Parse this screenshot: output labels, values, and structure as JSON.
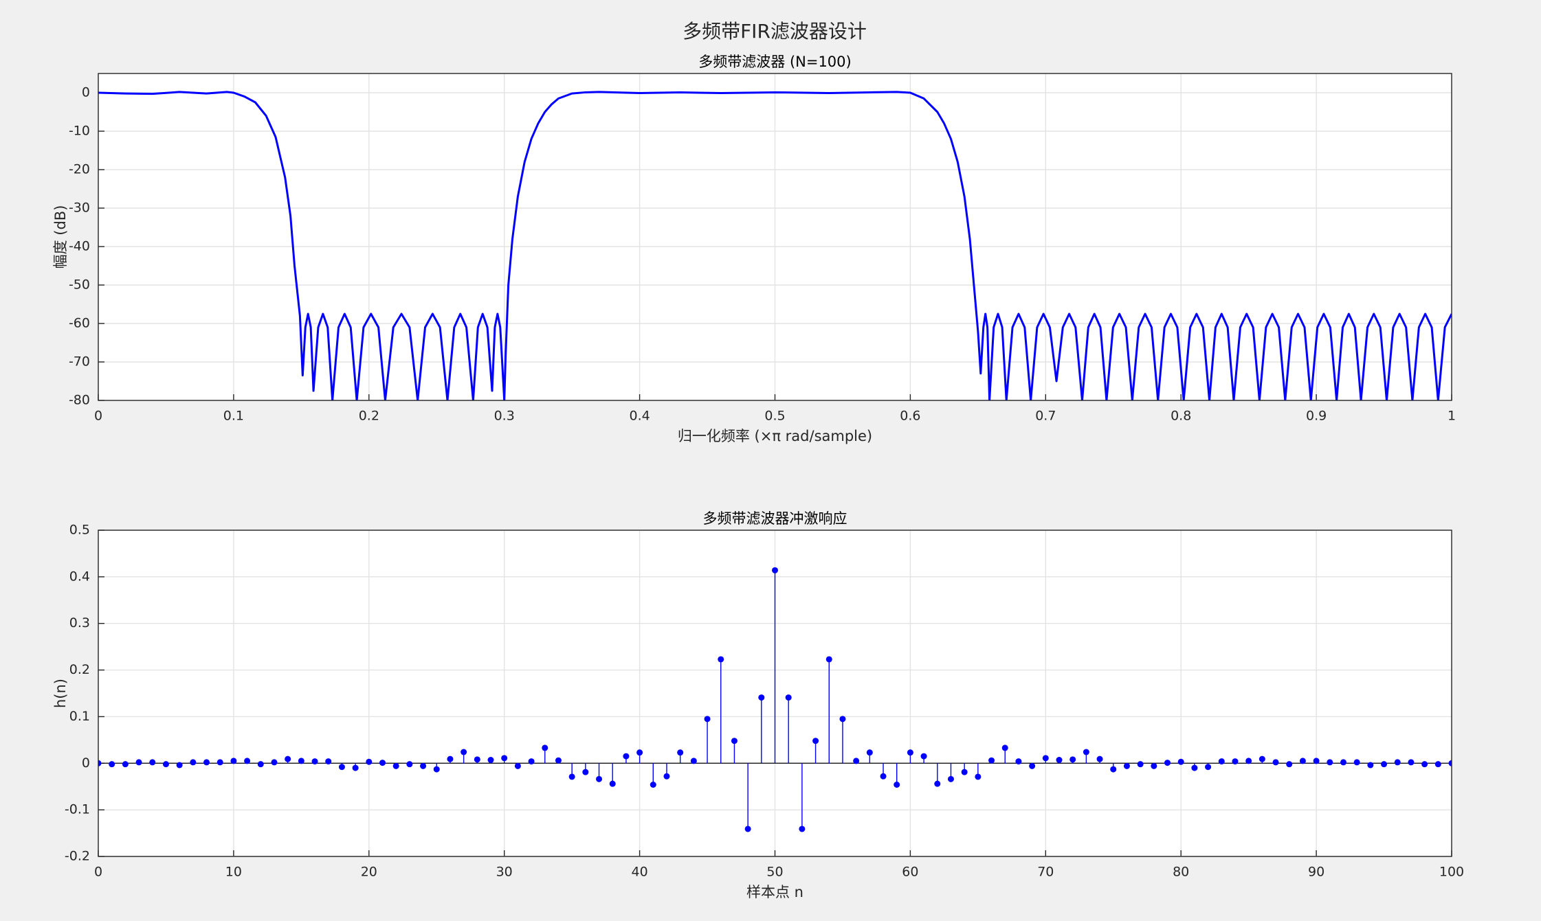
{
  "title": "多频带FIR滤波器设计",
  "chart_data": [
    {
      "type": "line",
      "title": "多频带滤波器 (N=100)",
      "x_label": "归一化频率 (×π rad/sample)",
      "y_label": "幅度 (dB)",
      "color": "#0000ff",
      "grid": true,
      "xlim": [
        0,
        1
      ],
      "ylim": [
        -80,
        5
      ],
      "xticks": [
        0,
        0.1,
        0.2,
        0.3,
        0.4,
        0.5,
        0.6,
        0.7,
        0.8,
        0.9,
        1
      ],
      "yticks": [
        -80,
        -70,
        -60,
        -50,
        -40,
        -30,
        -20,
        -10,
        0
      ],
      "x": [
        0,
        0.02,
        0.04,
        0.06,
        0.08,
        0.095,
        0.1,
        0.108,
        0.116,
        0.124,
        0.131,
        0.138,
        0.142,
        0.145,
        0.149,
        0.151,
        0.153,
        0.155,
        0.157,
        0.159,
        0.1625,
        0.166,
        0.1695,
        0.173,
        0.1775,
        0.182,
        0.1865,
        0.191,
        0.196,
        0.2015,
        0.207,
        0.212,
        0.218,
        0.224,
        0.23,
        0.236,
        0.2415,
        0.247,
        0.2525,
        0.258,
        0.263,
        0.2675,
        0.272,
        0.277,
        0.2805,
        0.284,
        0.2875,
        0.291,
        0.293,
        0.295,
        0.297,
        0.3,
        0.301,
        0.303,
        0.306,
        0.31,
        0.315,
        0.32,
        0.325,
        0.33,
        0.335,
        0.34,
        0.35,
        0.36,
        0.37,
        0.4,
        0.43,
        0.46,
        0.5,
        0.54,
        0.57,
        0.59,
        0.6,
        0.61,
        0.62,
        0.625,
        0.63,
        0.635,
        0.64,
        0.644,
        0.647,
        0.65,
        0.652,
        0.654,
        0.6555,
        0.657,
        0.6585,
        0.6616,
        0.6648,
        0.6679,
        0.671,
        0.6755,
        0.68,
        0.6845,
        0.689,
        0.6937,
        0.6984,
        0.7031,
        0.708,
        0.7127,
        0.7174,
        0.7221,
        0.727,
        0.7315,
        0.736,
        0.7405,
        0.745,
        0.7498,
        0.7545,
        0.7593,
        0.764,
        0.7688,
        0.7735,
        0.7783,
        0.783,
        0.7878,
        0.7925,
        0.7973,
        0.802,
        0.8068,
        0.8115,
        0.8163,
        0.821,
        0.8255,
        0.83,
        0.8345,
        0.839,
        0.8438,
        0.8485,
        0.8533,
        0.858,
        0.8628,
        0.8675,
        0.8723,
        0.877,
        0.8818,
        0.8865,
        0.8913,
        0.896,
        0.9008,
        0.9055,
        0.9103,
        0.915,
        0.9195,
        0.924,
        0.9285,
        0.933,
        0.9378,
        0.9425,
        0.9473,
        0.952,
        0.9568,
        0.9615,
        0.9663,
        0.971,
        0.9758,
        0.9805,
        0.9853,
        0.99,
        0.995,
        1
      ],
      "values": [
        0,
        -0.2,
        -0.3,
        0.2,
        -0.2,
        0.2,
        0,
        -1,
        -2.5,
        -6,
        -11.5,
        -22,
        -32,
        -45,
        -58,
        -73.5,
        -61,
        -57.5,
        -61,
        -77.5,
        -61,
        -57.5,
        -61,
        -80,
        -61,
        -57.5,
        -61,
        -80,
        -61,
        -57.5,
        -61,
        -80,
        -61,
        -57.5,
        -61,
        -80,
        -61,
        -57.5,
        -61,
        -80,
        -61,
        -57.5,
        -61,
        -80,
        -61,
        -57.5,
        -61,
        -77.5,
        -61,
        -57.5,
        -61,
        -80,
        -68,
        -50,
        -38,
        -27,
        -18,
        -12,
        -8,
        -5,
        -3,
        -1.5,
        -0.2,
        0.1,
        0.2,
        -0.1,
        0.1,
        -0.1,
        0.1,
        -0.1,
        0.1,
        0.2,
        0,
        -1.5,
        -5,
        -8,
        -12,
        -18,
        -27,
        -38,
        -50,
        -62,
        -73,
        -61,
        -57.5,
        -61,
        -80,
        -61,
        -57.5,
        -61,
        -80,
        -61,
        -57.5,
        -61,
        -80,
        -61,
        -57.5,
        -61,
        -75,
        -61,
        -57.5,
        -61,
        -80,
        -61,
        -57.5,
        -61,
        -80,
        -61,
        -57.5,
        -61,
        -80,
        -61,
        -57.5,
        -61,
        -80,
        -61,
        -57.5,
        -61,
        -80,
        -61,
        -57.5,
        -61,
        -80,
        -61,
        -57.5,
        -61,
        -80,
        -61,
        -57.5,
        -61,
        -80,
        -61,
        -57.5,
        -61,
        -80,
        -61,
        -57.5,
        -61,
        -80,
        -61,
        -57.5,
        -61,
        -80,
        -61,
        -57.5,
        -61,
        -80,
        -61,
        -57.5,
        -61,
        -80,
        -61,
        -57.5,
        -61,
        -80,
        -61,
        -57.5,
        -61,
        -80,
        -61,
        -57.5
      ]
    },
    {
      "type": "stem",
      "title": "多频带滤波器冲激响应",
      "x_label": "样本点 n",
      "y_label": "h(n)",
      "color": "#0000ff",
      "grid": true,
      "xlim": [
        0,
        100
      ],
      "ylim": [
        -0.2,
        0.5
      ],
      "xticks": [
        0,
        10,
        20,
        30,
        40,
        50,
        60,
        70,
        80,
        90,
        100
      ],
      "yticks": [
        -0.2,
        -0.1,
        0,
        0.1,
        0.2,
        0.3,
        0.4,
        0.5
      ],
      "x": [
        0,
        1,
        2,
        3,
        4,
        5,
        6,
        7,
        8,
        9,
        10,
        11,
        12,
        13,
        14,
        15,
        16,
        17,
        18,
        19,
        20,
        21,
        22,
        23,
        24,
        25,
        26,
        27,
        28,
        29,
        30,
        31,
        32,
        33,
        34,
        35,
        36,
        37,
        38,
        39,
        40,
        41,
        42,
        43,
        44,
        45,
        46,
        47,
        48,
        49,
        50,
        51,
        52,
        53,
        54,
        55,
        56,
        57,
        58,
        59,
        60,
        61,
        62,
        63,
        64,
        65,
        66,
        67,
        68,
        69,
        70,
        71,
        72,
        73,
        74,
        75,
        76,
        77,
        78,
        79,
        80,
        81,
        82,
        83,
        84,
        85,
        86,
        87,
        88,
        89,
        90,
        91,
        92,
        93,
        94,
        95,
        96,
        97,
        98,
        99,
        100
      ],
      "values": [
        0,
        -0.002,
        -0.002,
        0.002,
        0.002,
        -0.002,
        -0.004,
        0.002,
        0.002,
        0.002,
        0.005,
        0.005,
        -0.002,
        0.002,
        0.009,
        0.005,
        0.004,
        0.004,
        -0.008,
        -0.01,
        0.003,
        0.001,
        -0.006,
        -0.002,
        -0.006,
        -0.013,
        0.009,
        0.024,
        0.008,
        0.007,
        0.011,
        -0.006,
        0.004,
        0.033,
        0.006,
        -0.029,
        -0.019,
        -0.034,
        -0.044,
        0.015,
        0.023,
        -0.046,
        -0.028,
        0.023,
        0.005,
        0.095,
        0.223,
        0.048,
        -0.141,
        0.141,
        0.414,
        0.141,
        -0.141,
        0.048,
        0.223,
        0.095,
        0.005,
        0.023,
        -0.028,
        -0.046,
        0.023,
        0.015,
        -0.044,
        -0.034,
        -0.019,
        -0.029,
        0.006,
        0.033,
        0.004,
        -0.006,
        0.011,
        0.007,
        0.008,
        0.024,
        0.009,
        -0.013,
        -0.006,
        -0.002,
        -0.006,
        0.001,
        0.003,
        -0.01,
        -0.008,
        0.004,
        0.004,
        0.005,
        0.009,
        0.002,
        -0.002,
        0.005,
        0.005,
        0.002,
        0.002,
        0.002,
        -0.004,
        -0.002,
        0.002,
        0.002,
        -0.002,
        -0.002,
        0
      ]
    }
  ]
}
